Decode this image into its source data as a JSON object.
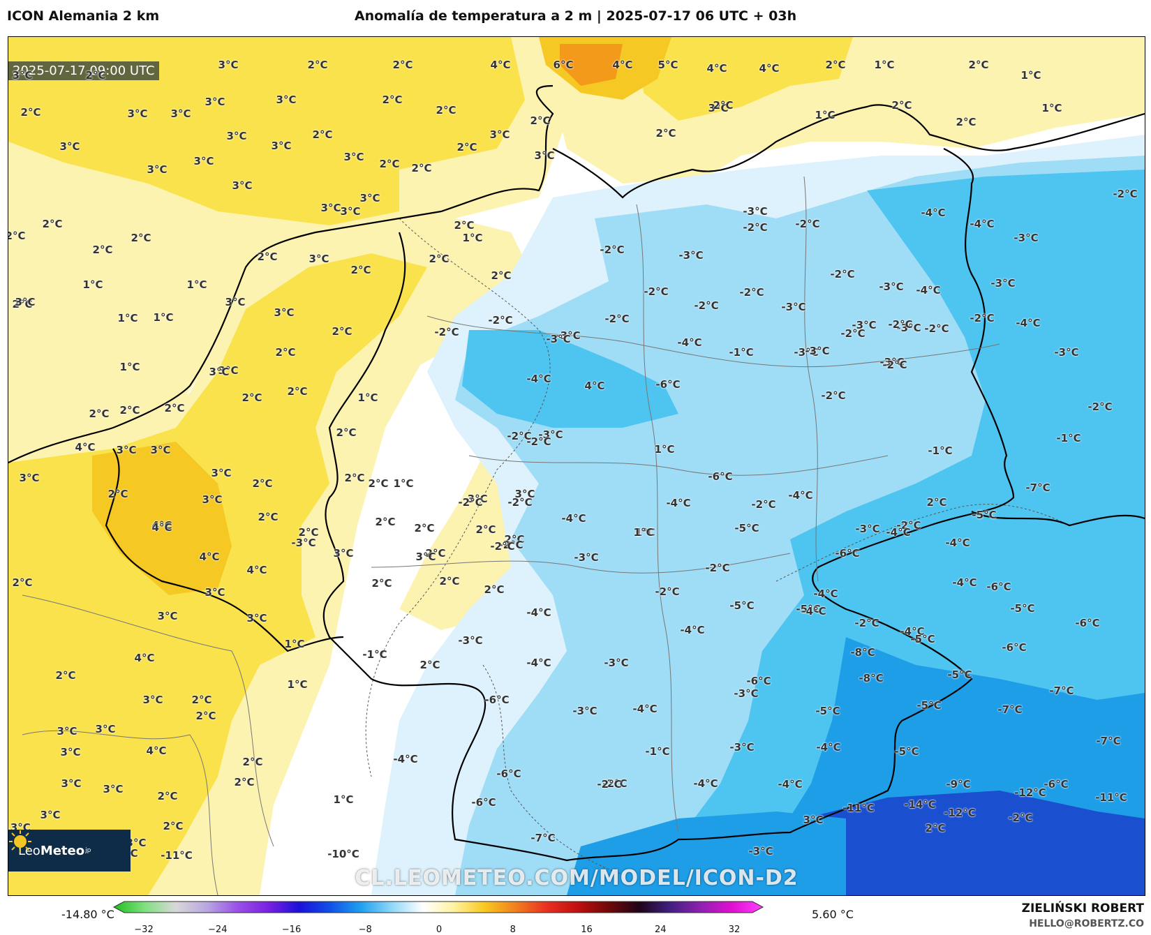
{
  "header": {
    "model": "ICON Alemania 2 km",
    "title": "Anomalía de temperatura a 2 m | 2025-07-17 06 UTC + 03h"
  },
  "map": {
    "valid_time": "2025-07-17 09:00 UTC",
    "watermark": "CL.LEOMETEO.COM/MODEL/ICON-D2",
    "colors": {
      "warm_light": "#fdf3b0",
      "warm": "#fae24c",
      "warm_strong": "#f5c823",
      "warm_max": "#f39a1a",
      "neutral": "#ffffff",
      "cold_light": "#ddf2fc",
      "cold": "#9fdcf6",
      "cold_mid": "#4ec4f0",
      "cold_strong": "#1f9ee8",
      "cold_max": "#1a4fd0"
    },
    "labels": [
      {
        "t": "3°C"
      },
      {
        "t": "2°C"
      },
      {
        "t": "3°C"
      },
      {
        "t": "2°C"
      },
      {
        "t": "2°C"
      },
      {
        "t": "4°C"
      },
      {
        "t": "6°C"
      },
      {
        "t": "4°C"
      },
      {
        "t": "5°C"
      },
      {
        "t": "4°C"
      },
      {
        "t": "4°C"
      },
      {
        "t": "2°C"
      },
      {
        "t": "1°C"
      },
      {
        "t": "2°C"
      },
      {
        "t": "1°C"
      },
      {
        "t": "2°C"
      },
      {
        "t": "3°C"
      },
      {
        "t": "3°C"
      },
      {
        "t": "3°C"
      },
      {
        "t": "3°C"
      },
      {
        "t": "2°C"
      },
      {
        "t": "2°C"
      },
      {
        "t": "2°C"
      },
      {
        "t": "3°C"
      },
      {
        "t": "1°C"
      },
      {
        "t": "2°C"
      },
      {
        "t": "1°C"
      },
      {
        "t": "3°C"
      },
      {
        "t": "3°C"
      },
      {
        "t": "3°C"
      },
      {
        "t": "3°C"
      },
      {
        "t": "3°C"
      },
      {
        "t": "2°C"
      },
      {
        "t": "3°C"
      },
      {
        "t": "2°C"
      },
      {
        "t": "2°C"
      },
      {
        "t": "2°C"
      },
      {
        "t": "3°C"
      },
      {
        "t": "3°C"
      },
      {
        "t": "3°C"
      },
      {
        "t": "2°C"
      },
      {
        "t": "2°C"
      },
      {
        "t": "2°C"
      },
      {
        "t": "3°C"
      },
      {
        "t": "3°C"
      },
      {
        "t": "3°C"
      },
      {
        "t": "2°C"
      },
      {
        "t": "-3°C"
      },
      {
        "t": "2°C"
      },
      {
        "t": "2°C"
      },
      {
        "t": "2°C"
      },
      {
        "t": "2°C"
      },
      {
        "t": "-4°C"
      },
      {
        "t": "-4°C"
      },
      {
        "t": "-3°C"
      },
      {
        "t": "-2°C"
      },
      {
        "t": "2°C"
      },
      {
        "t": "3°C"
      },
      {
        "t": "1°C"
      },
      {
        "t": "2°C"
      },
      {
        "t": "-2°C"
      },
      {
        "t": "-3°C"
      },
      {
        "t": "1°C"
      },
      {
        "t": "1°C"
      },
      {
        "t": "3°C"
      },
      {
        "t": "3°C"
      },
      {
        "t": "2°C"
      },
      {
        "t": "2°C"
      },
      {
        "t": "-2°C"
      },
      {
        "t": "-2°C"
      },
      {
        "t": "-2°C"
      },
      {
        "t": "-3°C"
      },
      {
        "t": "-4°C"
      },
      {
        "t": "-3°C"
      },
      {
        "t": "2°C"
      },
      {
        "t": "3°C"
      },
      {
        "t": "-2°C"
      },
      {
        "t": "-2°C"
      },
      {
        "t": "-2°C"
      },
      {
        "t": "-3°C"
      },
      {
        "t": "-3°C"
      },
      {
        "t": "-2°C"
      },
      {
        "t": "-3°C"
      },
      {
        "t": "-2°C"
      },
      {
        "t": "-4°C"
      },
      {
        "t": "1°C"
      },
      {
        "t": "1°C"
      },
      {
        "t": "2°C"
      },
      {
        "t": "-2°C"
      },
      {
        "t": "-2°C"
      },
      {
        "t": "-2°C"
      },
      {
        "t": "-2°C"
      },
      {
        "t": "-3°C"
      },
      {
        "t": "-3°C"
      },
      {
        "t": "2°C"
      },
      {
        "t": "3°C"
      },
      {
        "t": "-2°C"
      },
      {
        "t": "-3°C"
      },
      {
        "t": "-3°C"
      },
      {
        "t": "-4°C"
      },
      {
        "t": "-1°C"
      },
      {
        "t": "-3°C"
      },
      {
        "t": "-3°C"
      },
      {
        "t": "1°C"
      },
      {
        "t": "3°C"
      },
      {
        "t": "-4°C"
      },
      {
        "t": "4°C"
      },
      {
        "t": "-6°C"
      },
      {
        "t": "-2°C"
      },
      {
        "t": "2°C"
      },
      {
        "t": "2°C"
      },
      {
        "t": "1°C"
      },
      {
        "t": "2°C"
      },
      {
        "t": "-2°C"
      },
      {
        "t": "-3°C"
      },
      {
        "t": "-2°C"
      },
      {
        "t": "-2°C"
      },
      {
        "t": "2°C"
      },
      {
        "t": "2°C"
      },
      {
        "t": "-2°C"
      },
      {
        "t": "-1°C"
      },
      {
        "t": "4°C"
      },
      {
        "t": "3°C"
      },
      {
        "t": "3°C"
      },
      {
        "t": "3°C"
      },
      {
        "t": "2°C"
      },
      {
        "t": "2°C"
      },
      {
        "t": "1°C"
      },
      {
        "t": "-1°C"
      },
      {
        "t": "3°C"
      },
      {
        "t": "2°C"
      },
      {
        "t": "2°C"
      },
      {
        "t": "1°C"
      },
      {
        "t": "-3°C"
      },
      {
        "t": "-2°C"
      },
      {
        "t": "-6°C"
      },
      {
        "t": "2°C"
      },
      {
        "t": "3°C"
      },
      {
        "t": "-2°C"
      },
      {
        "t": "3°C"
      },
      {
        "t": "-4°C"
      },
      {
        "t": "-2°C"
      },
      {
        "t": "-4°C"
      },
      {
        "t": "2°C"
      },
      {
        "t": "-7°C"
      },
      {
        "t": "2°C"
      },
      {
        "t": "-3°C"
      },
      {
        "t": "4°C"
      },
      {
        "t": "-4°C"
      },
      {
        "t": "-5°C"
      },
      {
        "t": "1°C"
      },
      {
        "t": "-2°C"
      },
      {
        "t": "4°C"
      },
      {
        "t": "2°C"
      },
      {
        "t": "2°C"
      },
      {
        "t": "2°C"
      },
      {
        "t": "2°C"
      },
      {
        "t": "-2°C"
      },
      {
        "t": "1°C"
      },
      {
        "t": "2°C"
      },
      {
        "t": "4°C"
      },
      {
        "t": "4°C"
      },
      {
        "t": "-2°C"
      },
      {
        "t": "2°C"
      },
      {
        "t": "-3°C"
      },
      {
        "t": "-3°C"
      },
      {
        "t": "-4°C"
      },
      {
        "t": "-5°C"
      },
      {
        "t": "-4°C"
      },
      {
        "t": "2°C"
      },
      {
        "t": "3°C"
      },
      {
        "t": "3°C"
      },
      {
        "t": "2°C"
      },
      {
        "t": "2°C"
      },
      {
        "t": "2°C"
      },
      {
        "t": "-2°C"
      },
      {
        "t": "-6°C"
      },
      {
        "t": "-4°C"
      },
      {
        "t": "-6°C"
      },
      {
        "t": "3°C"
      },
      {
        "t": "3°C"
      },
      {
        "t": "-4°C"
      },
      {
        "t": "-5°C"
      },
      {
        "t": "-5°C"
      },
      {
        "t": "-4°C"
      },
      {
        "t": "3°C"
      },
      {
        "t": "1°C"
      },
      {
        "t": "-3°C"
      },
      {
        "t": "-2°C"
      },
      {
        "t": "-4°C"
      },
      {
        "t": "-2°C"
      },
      {
        "t": "-5°C"
      },
      {
        "t": "-6°C"
      },
      {
        "t": "4°C"
      },
      {
        "t": "-1°C"
      },
      {
        "t": "2°C"
      },
      {
        "t": "-4°C"
      },
      {
        "t": "-4°C"
      },
      {
        "t": "-5°C"
      },
      {
        "t": "-8°C"
      },
      {
        "t": "-5°C"
      },
      {
        "t": "-6°C"
      },
      {
        "t": "2°C"
      },
      {
        "t": "3°C"
      },
      {
        "t": "-3°C"
      },
      {
        "t": "-4°C"
      },
      {
        "t": "-6°C"
      },
      {
        "t": "-8°C"
      },
      {
        "t": "2°C"
      },
      {
        "t": "1°C"
      },
      {
        "t": "-6°C"
      },
      {
        "t": "-4°C"
      },
      {
        "t": "-3°C"
      },
      {
        "t": "-5°C"
      },
      {
        "t": "-5°C"
      },
      {
        "t": "-7°C"
      },
      {
        "t": "-7°C"
      },
      {
        "t": "3°C"
      },
      {
        "t": "3°C"
      },
      {
        "t": "2°C"
      },
      {
        "t": "4°C"
      },
      {
        "t": "-3°C"
      },
      {
        "t": "-1°C"
      },
      {
        "t": "-3°C"
      },
      {
        "t": "-4°C"
      },
      {
        "t": "-5°C"
      },
      {
        "t": "-7°C"
      },
      {
        "t": "3°C"
      },
      {
        "t": "2°C"
      },
      {
        "t": "-4°C"
      },
      {
        "t": "-6°C"
      },
      {
        "t": "-2°C"
      },
      {
        "t": "-4°C"
      },
      {
        "t": "-4°C"
      },
      {
        "t": "-6°C"
      },
      {
        "t": "3°C"
      },
      {
        "t": "3°C"
      },
      {
        "t": "2°C"
      },
      {
        "t": "1°C"
      },
      {
        "t": "-2°C"
      },
      {
        "t": "-6°C"
      },
      {
        "t": "-9°C"
      },
      {
        "t": "-12°C"
      },
      {
        "t": "3°C"
      },
      {
        "t": "2°C"
      },
      {
        "t": "-7°C"
      },
      {
        "t": "-11°C"
      },
      {
        "t": "-14°C"
      },
      {
        "t": "-12°C"
      },
      {
        "t": "-13°C"
      },
      {
        "t": "3°C"
      },
      {
        "t": "2°C"
      },
      {
        "t": "3°C"
      },
      {
        "t": "2°C"
      },
      {
        "t": "-2°C"
      },
      {
        "t": "-11°C"
      },
      {
        "t": "-14°C"
      },
      {
        "t": "-10°C"
      },
      {
        "t": "-9°C"
      },
      {
        "t": "-11°C"
      },
      {
        "t": "-10°C"
      },
      {
        "t": "-3°C"
      }
    ]
  },
  "logo": {
    "brand_light": "Leo",
    "brand_bold": "Meteo",
    "suffix": "jp"
  },
  "colorbar": {
    "min_label": "-14.80 °C",
    "max_label": "5.60 °C",
    "ticks": [
      "−32",
      "−24",
      "−16",
      "−8",
      "0",
      "8",
      "16",
      "24",
      "32"
    ],
    "stops": [
      "#20c020",
      "#80e080",
      "#d8d8d8",
      "#b8a8e0",
      "#9a50e8",
      "#7a20e0",
      "#1a10d8",
      "#1050e8",
      "#20a0f0",
      "#90d8f8",
      "#ffffff",
      "#fff2a0",
      "#f8c820",
      "#f08020",
      "#e83020",
      "#c01010",
      "#700808",
      "#200418",
      "#402080",
      "#9020b0",
      "#e010d0",
      "#ff40ff"
    ]
  },
  "credits": {
    "author": "ZIELIŃSKI ROBERT",
    "email": "HELLO@ROBERTZ.CO"
  }
}
